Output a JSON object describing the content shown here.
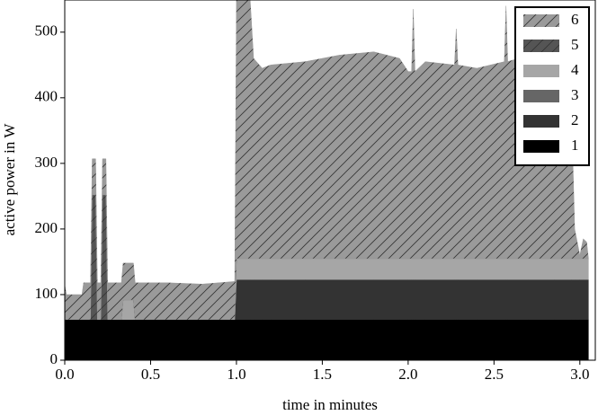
{
  "chart_data": {
    "type": "stacked-area",
    "xlabel": "time in minutes",
    "ylabel": "active power in W",
    "xlim": [
      0,
      3.09
    ],
    "ylim": [
      0,
      549
    ],
    "xticks": [
      {
        "value": 0,
        "label": "0.0"
      },
      0.5,
      {
        "value": 1,
        "label": "1.0"
      },
      1.5,
      {
        "value": 2,
        "label": "2.0"
      },
      2.5,
      {
        "value": 3,
        "label": "3.0"
      }
    ],
    "yticks": [
      0,
      100,
      200,
      300,
      400,
      500
    ],
    "legend": "upper right",
    "x": [
      0,
      0.01,
      0.1,
      0.11,
      0.15,
      0.16,
      0.18,
      0.19,
      0.21,
      0.22,
      0.24,
      0.25,
      0.33,
      0.34,
      0.4,
      0.41,
      0.6,
      0.8,
      0.99,
      1.0,
      1.08,
      1.1,
      1.15,
      1.2,
      1.4,
      1.6,
      1.8,
      1.95,
      2.0,
      2.02,
      2.03,
      2.04,
      2.1,
      2.27,
      2.28,
      2.29,
      2.4,
      2.56,
      2.57,
      2.58,
      2.7,
      2.85,
      2.95,
      2.97,
      3.0,
      3.02,
      3.04,
      3.05
    ],
    "series": [
      {
        "name": "1",
        "color": "#000000",
        "hatch": false,
        "values": [
          62,
          62,
          62,
          62,
          62,
          62,
          62,
          62,
          62,
          62,
          62,
          62,
          62,
          62,
          62,
          62,
          62,
          62,
          62,
          62,
          62,
          62,
          62,
          62,
          62,
          62,
          62,
          62,
          62,
          62,
          62,
          62,
          62,
          62,
          62,
          62,
          62,
          62,
          62,
          62,
          62,
          62,
          62,
          62,
          62,
          62,
          62,
          62
        ]
      },
      {
        "name": "2",
        "color": "#333333",
        "hatch": false,
        "values": [
          0,
          0,
          0,
          0,
          0,
          0,
          0,
          0,
          0,
          0,
          0,
          0,
          0,
          0,
          0,
          0,
          0,
          0,
          0,
          61,
          61,
          61,
          61,
          61,
          61,
          61,
          61,
          61,
          61,
          61,
          61,
          61,
          61,
          61,
          61,
          61,
          61,
          61,
          61,
          61,
          61,
          61,
          61,
          61,
          61,
          61,
          61,
          61
        ]
      },
      {
        "name": "3",
        "color": "#666666",
        "hatch": false,
        "values": [
          0,
          0,
          0,
          0,
          0,
          0,
          0,
          0,
          0,
          0,
          0,
          0,
          0,
          0,
          0,
          0,
          0,
          0,
          0,
          0,
          0,
          0,
          0,
          0,
          0,
          0,
          0,
          0,
          0,
          0,
          0,
          0,
          0,
          0,
          0,
          0,
          0,
          0,
          0,
          0,
          0,
          0,
          0,
          0,
          0,
          0,
          0,
          0
        ]
      },
      {
        "name": "4",
        "color": "#a6a6a6",
        "hatch": false,
        "values": [
          0,
          0,
          0,
          0,
          0,
          0,
          0,
          0,
          0,
          0,
          0,
          0,
          0,
          30,
          30,
          0,
          0,
          0,
          0,
          32,
          32,
          32,
          32,
          32,
          32,
          32,
          32,
          32,
          32,
          32,
          32,
          32,
          32,
          32,
          32,
          32,
          32,
          32,
          32,
          32,
          32,
          32,
          32,
          32,
          32,
          32,
          32,
          32
        ]
      },
      {
        "name": "5",
        "color": "#555555",
        "hatch": true,
        "values": [
          0,
          0,
          0,
          0,
          0,
          190,
          190,
          0,
          0,
          190,
          190,
          0,
          0,
          0,
          0,
          0,
          0,
          0,
          0,
          0,
          0,
          0,
          0,
          0,
          0,
          0,
          0,
          0,
          0,
          0,
          0,
          0,
          0,
          0,
          0,
          0,
          0,
          0,
          0,
          0,
          0,
          0,
          0,
          0,
          0,
          0,
          0,
          0
        ]
      },
      {
        "name": "6",
        "color": "#9a9a9a",
        "hatch": true,
        "values": [
          53,
          38,
          38,
          56,
          56,
          55,
          55,
          56,
          56,
          55,
          55,
          56,
          56,
          56,
          56,
          56,
          56,
          54,
          58,
          394,
          394,
          305,
          290,
          295,
          300,
          310,
          315,
          305,
          285,
          285,
          380,
          285,
          300,
          295,
          350,
          295,
          290,
          300,
          385,
          300,
          310,
          305,
          240,
          45,
          5,
          30,
          25,
          0
        ]
      }
    ]
  }
}
